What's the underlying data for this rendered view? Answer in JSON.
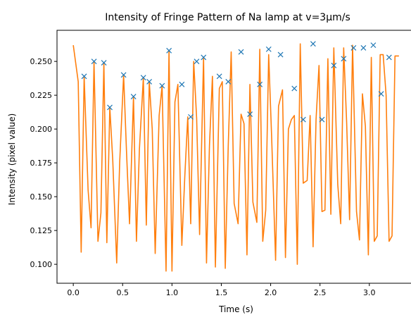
{
  "chart_data": {
    "type": "line",
    "title": "Intensity of Fringe Pattern of Na lamp at v=3μm/s",
    "xlabel": "Time (s)",
    "ylabel": "Intensity (pixel value)",
    "xlim": [
      -0.165,
      3.465
    ],
    "ylim": [
      0.086,
      0.273
    ],
    "xticks": [
      0.0,
      0.5,
      1.0,
      1.5,
      2.0,
      2.5,
      3.0
    ],
    "xtick_labels": [
      "0.0",
      "0.5",
      "1.0",
      "1.5",
      "2.0",
      "2.5",
      "3.0"
    ],
    "yticks": [
      0.1,
      0.125,
      0.15,
      0.175,
      0.2,
      0.225,
      0.25
    ],
    "ytick_labels": [
      "0.100",
      "0.125",
      "0.150",
      "0.175",
      "0.200",
      "0.225",
      "0.250"
    ],
    "grid": false,
    "series": [
      {
        "color": "#ff7f0e",
        "x": [
          0.0,
          0.05,
          0.08,
          0.11,
          0.15,
          0.18,
          0.21,
          0.25,
          0.28,
          0.31,
          0.34,
          0.37,
          0.4,
          0.44,
          0.47,
          0.51,
          0.54,
          0.57,
          0.61,
          0.64,
          0.67,
          0.71,
          0.74,
          0.77,
          0.8,
          0.83,
          0.87,
          0.9,
          0.94,
          0.97,
          1.0,
          1.03,
          1.06,
          1.1,
          1.13,
          1.16,
          1.19,
          1.22,
          1.25,
          1.28,
          1.32,
          1.35,
          1.38,
          1.41,
          1.44,
          1.48,
          1.51,
          1.54,
          1.57,
          1.6,
          1.63,
          1.67,
          1.7,
          1.73,
          1.76,
          1.79,
          1.82,
          1.86,
          1.89,
          1.92,
          1.95,
          1.98,
          2.01,
          2.05,
          2.08,
          2.12,
          2.15,
          2.18,
          2.21,
          2.24,
          2.27,
          2.3,
          2.33,
          2.37,
          2.4,
          2.43,
          2.46,
          2.49,
          2.52,
          2.55,
          2.58,
          2.61,
          2.64,
          2.68,
          2.71,
          2.74,
          2.77,
          2.8,
          2.83,
          2.87,
          2.9,
          2.93,
          2.96,
          2.99,
          3.02,
          3.05,
          3.08,
          3.11,
          3.14,
          3.17,
          3.2,
          3.23,
          3.26,
          3.3
        ],
        "y": [
          0.262,
          0.235,
          0.109,
          0.239,
          0.155,
          0.127,
          0.25,
          0.117,
          0.138,
          0.249,
          0.116,
          0.216,
          0.177,
          0.101,
          0.175,
          0.24,
          0.182,
          0.13,
          0.224,
          0.117,
          0.185,
          0.238,
          0.129,
          0.235,
          0.2,
          0.108,
          0.21,
          0.232,
          0.095,
          0.258,
          0.095,
          0.22,
          0.233,
          0.114,
          0.165,
          0.209,
          0.13,
          0.25,
          0.208,
          0.122,
          0.253,
          0.101,
          0.188,
          0.239,
          0.098,
          0.23,
          0.235,
          0.097,
          0.187,
          0.257,
          0.145,
          0.13,
          0.211,
          0.204,
          0.107,
          0.233,
          0.146,
          0.131,
          0.259,
          0.117,
          0.14,
          0.255,
          0.194,
          0.103,
          0.217,
          0.229,
          0.105,
          0.2,
          0.207,
          0.21,
          0.1,
          0.263,
          0.16,
          0.162,
          0.21,
          0.113,
          0.207,
          0.247,
          0.139,
          0.14,
          0.252,
          0.137,
          0.26,
          0.159,
          0.13,
          0.26,
          0.205,
          0.133,
          0.262,
          0.139,
          0.118,
          0.226,
          0.202,
          0.107,
          0.253,
          0.117,
          0.121,
          0.255,
          0.255,
          0.225,
          0.117,
          0.121,
          0.254,
          0.254
        ]
      },
      {
        "color": "#1f77b4",
        "marker": "x",
        "x": [
          0.11,
          0.21,
          0.31,
          0.37,
          0.51,
          0.61,
          0.71,
          0.77,
          0.9,
          0.97,
          1.1,
          1.19,
          1.25,
          1.32,
          1.48,
          1.57,
          1.7,
          1.79,
          1.89,
          1.98,
          2.1,
          2.24,
          2.33,
          2.43,
          2.52,
          2.64,
          2.74,
          2.84,
          2.94,
          3.04,
          3.12,
          3.2
        ],
        "y": [
          0.239,
          0.25,
          0.249,
          0.216,
          0.24,
          0.224,
          0.238,
          0.235,
          0.232,
          0.258,
          0.233,
          0.209,
          0.25,
          0.253,
          0.239,
          0.235,
          0.257,
          0.211,
          0.233,
          0.259,
          0.255,
          0.23,
          0.207,
          0.263,
          0.207,
          0.247,
          0.252,
          0.26,
          0.26,
          0.262,
          0.226,
          0.253
        ]
      }
    ]
  }
}
